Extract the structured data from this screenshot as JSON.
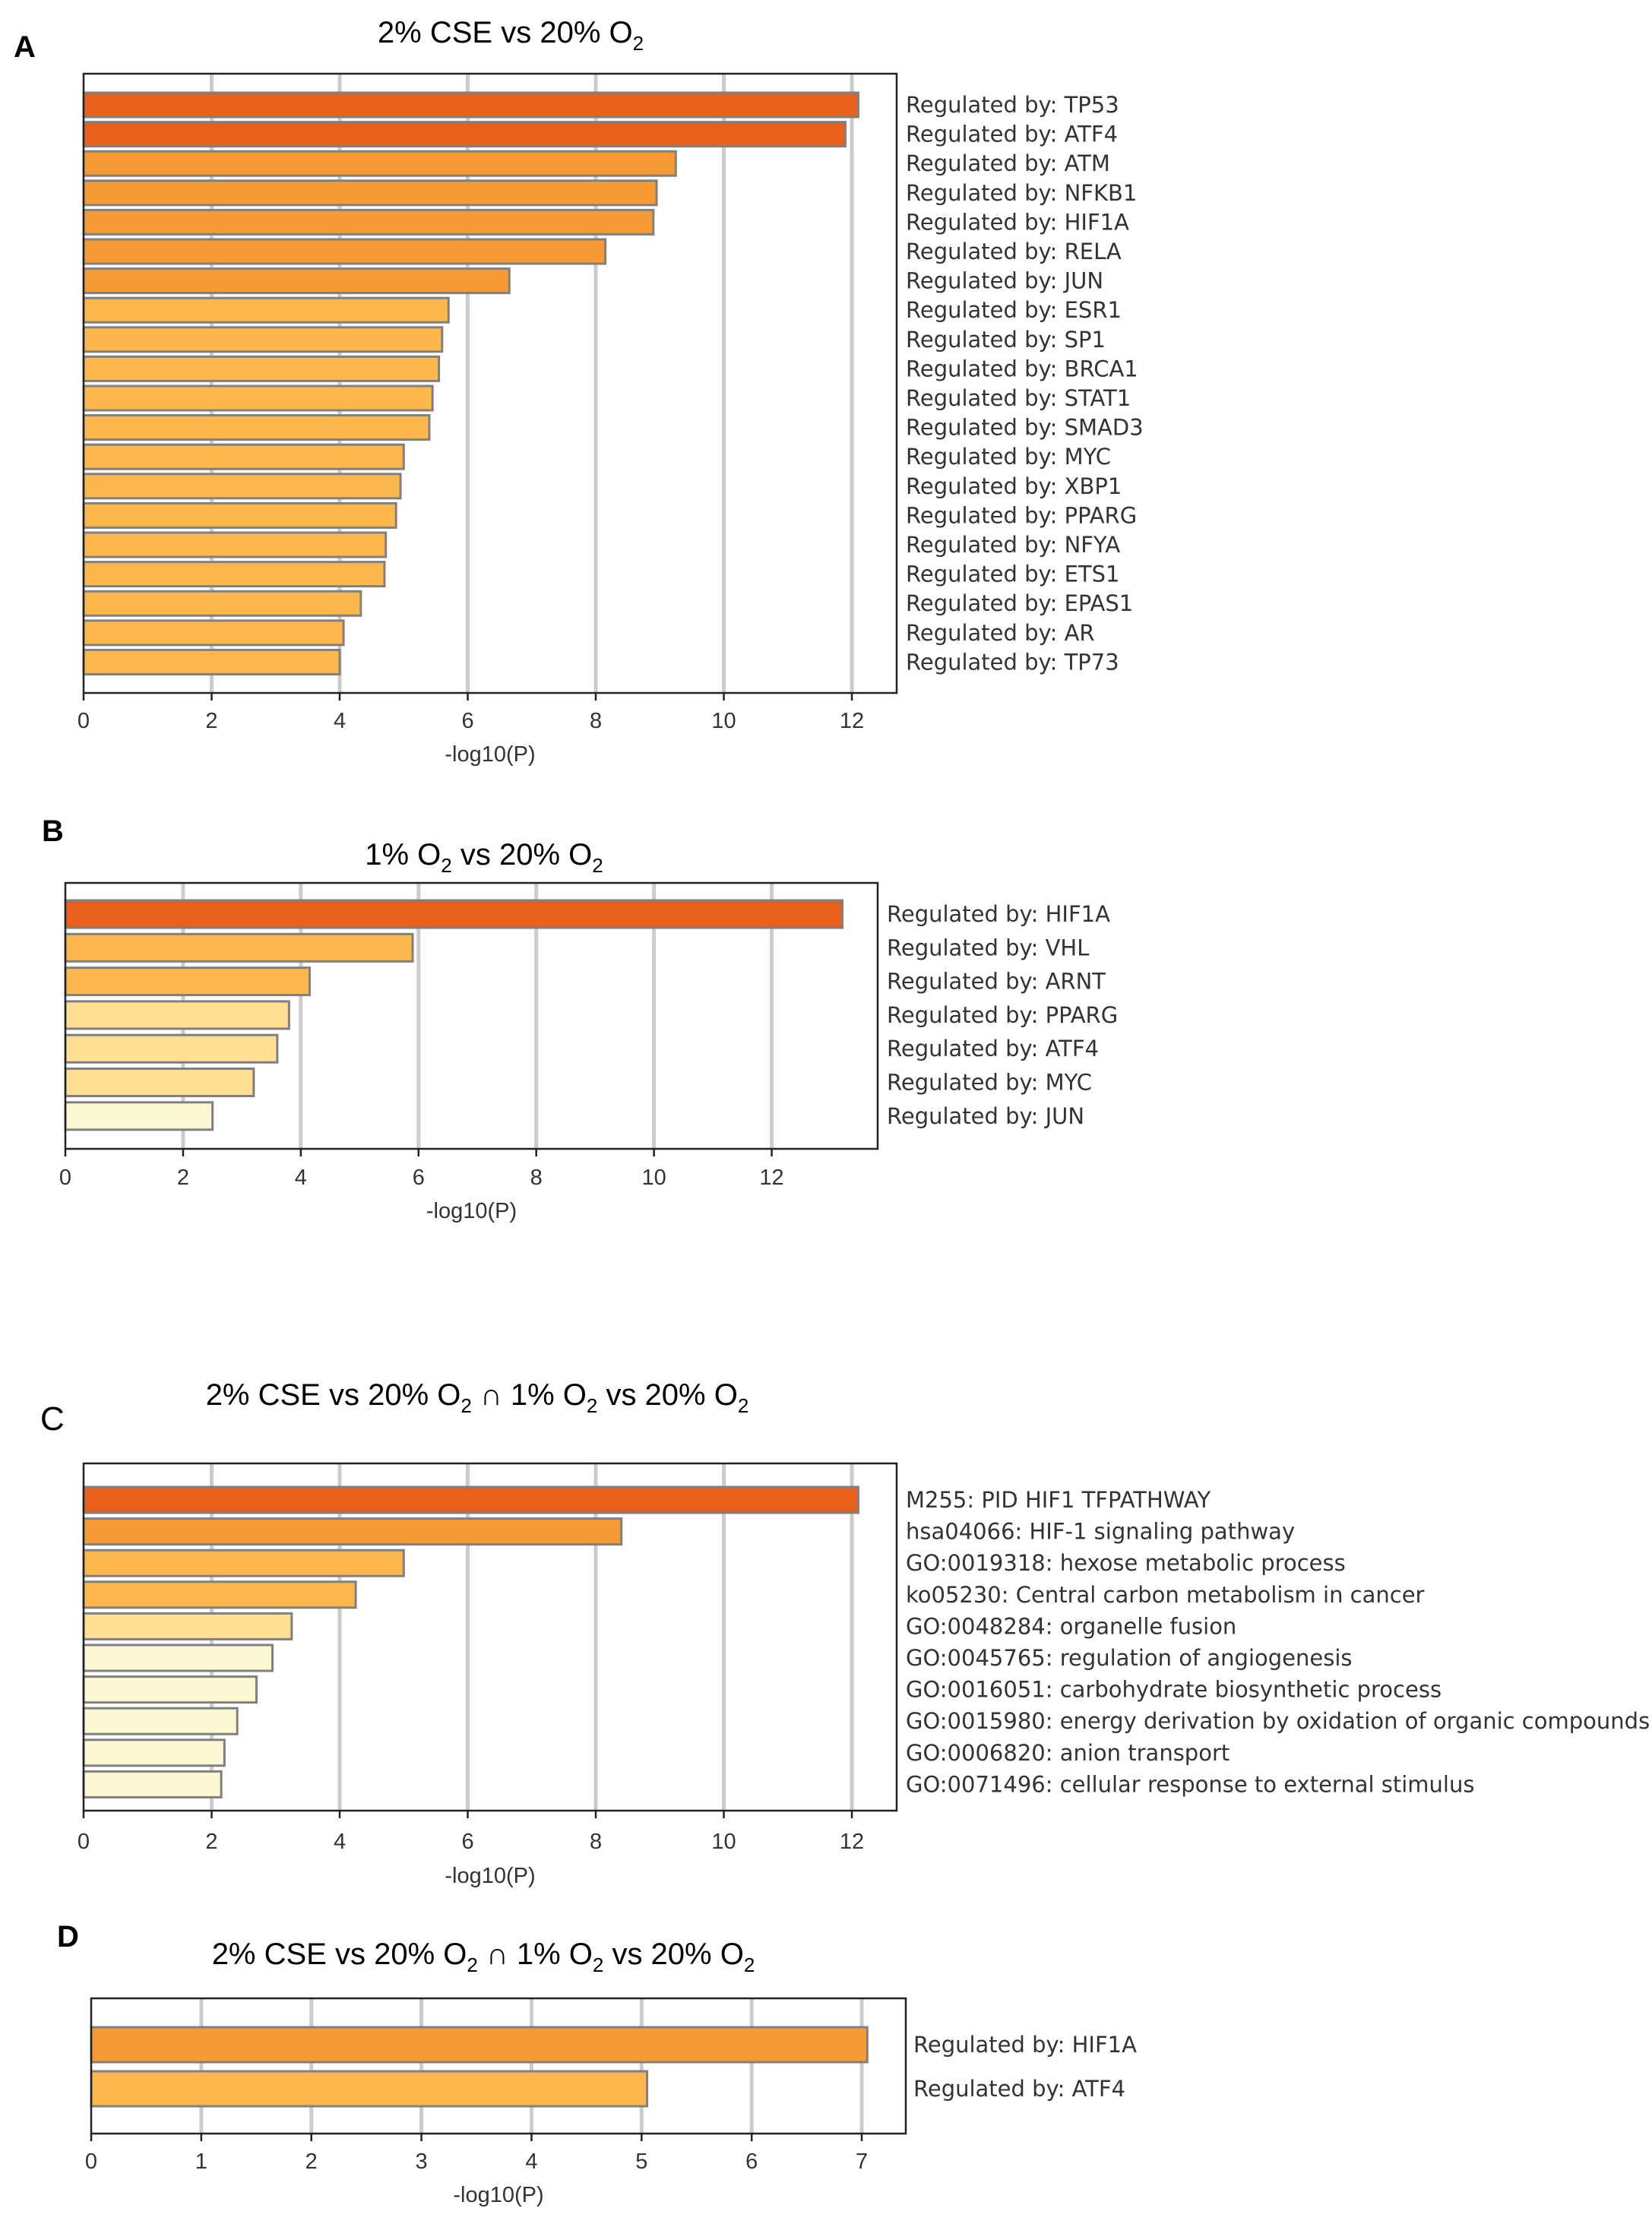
{
  "chart_data": [
    {
      "id": "A",
      "type": "bar",
      "orientation": "horizontal",
      "panel_label": "A",
      "title": "2% CSE vs 20% O2",
      "title_parts": [
        {
          "text": "2% CSE vs 20% O"
        },
        {
          "text": "2",
          "sub": true
        }
      ],
      "xlabel": "-log10(P)",
      "xlim": [
        0,
        12.7
      ],
      "xticks": [
        0,
        2,
        4,
        6,
        8,
        10,
        12
      ],
      "grid": true,
      "categories": [
        "Regulated by: TP53",
        "Regulated by: ATF4",
        "Regulated by: ATM",
        "Regulated by: NFKB1",
        "Regulated by: HIF1A",
        "Regulated by: RELA",
        "Regulated by: JUN",
        "Regulated by: ESR1",
        "Regulated by: SP1",
        "Regulated by: BRCA1",
        "Regulated by: STAT1",
        "Regulated by: SMAD3",
        "Regulated by: MYC",
        "Regulated by: XBP1",
        "Regulated by: PPARG",
        "Regulated by: NFYA",
        "Regulated by: ETS1",
        "Regulated by: EPAS1",
        "Regulated by: AR",
        "Regulated by: TP73"
      ],
      "values": [
        12.1,
        11.9,
        9.25,
        8.95,
        8.9,
        8.15,
        6.65,
        5.7,
        5.6,
        5.55,
        5.45,
        5.4,
        5.0,
        4.95,
        4.88,
        4.72,
        4.7,
        4.33,
        4.06,
        4.0
      ],
      "colors": [
        "#e8601c",
        "#e8601c",
        "#f89a33",
        "#f89a33",
        "#f89a33",
        "#f89a33",
        "#f89a33",
        "#fdb84d",
        "#fdb84d",
        "#fdb84d",
        "#fdb84d",
        "#fdb84d",
        "#fdb84d",
        "#fdb84d",
        "#fdb84d",
        "#fdb84d",
        "#fdb84d",
        "#fdb84d",
        "#fdb84d",
        "#fdb84d"
      ]
    },
    {
      "id": "B",
      "type": "bar",
      "orientation": "horizontal",
      "panel_label": "B",
      "title": "1% O2 vs 20% O2",
      "title_parts": [
        {
          "text": "1% O"
        },
        {
          "text": "2",
          "sub": true
        },
        {
          "text": " vs 20% O"
        },
        {
          "text": "2",
          "sub": true
        }
      ],
      "xlabel": "-log10(P)",
      "xlim": [
        0,
        13.8
      ],
      "xticks": [
        0,
        2,
        4,
        6,
        8,
        10,
        12
      ],
      "grid": true,
      "categories": [
        "Regulated by: HIF1A",
        "Regulated by: VHL",
        "Regulated by: ARNT",
        "Regulated by: PPARG",
        "Regulated by: ATF4",
        "Regulated by: MYC",
        "Regulated by: JUN"
      ],
      "values": [
        13.2,
        5.9,
        4.15,
        3.8,
        3.6,
        3.2,
        2.5
      ],
      "colors": [
        "#e8601c",
        "#fdb84d",
        "#fdb84d",
        "#fedf94",
        "#fedf94",
        "#fedf94",
        "#fef8d2"
      ]
    },
    {
      "id": "C",
      "type": "bar",
      "orientation": "horizontal",
      "panel_label": "C",
      "title": "2% CSE vs 20% O2 ∩ 1% O2 vs 20% O2",
      "title_parts": [
        {
          "text": "2% CSE vs 20% O"
        },
        {
          "text": "2",
          "sub": true
        },
        {
          "text": "  ∩   1% O"
        },
        {
          "text": "2",
          "sub": true
        },
        {
          "text": " vs 20% O"
        },
        {
          "text": "2",
          "sub": true
        }
      ],
      "xlabel": "-log10(P)",
      "xlim": [
        0,
        12.7
      ],
      "xticks": [
        0,
        2,
        4,
        6,
        8,
        10,
        12
      ],
      "grid": true,
      "categories": [
        "M255: PID HIF1 TFPATHWAY",
        "hsa04066: HIF-1 signaling pathway",
        "GO:0019318: hexose metabolic process",
        "ko05230: Central carbon metabolism in cancer",
        "GO:0048284: organelle fusion",
        "GO:0045765: regulation of angiogenesis",
        "GO:0016051: carbohydrate biosynthetic process",
        "GO:0015980: energy derivation by oxidation of organic compounds",
        "GO:0006820: anion transport",
        "GO:0071496: cellular response to external stimulus"
      ],
      "values": [
        12.1,
        8.4,
        5.0,
        4.25,
        3.25,
        2.95,
        2.7,
        2.4,
        2.2,
        2.15
      ],
      "colors": [
        "#e8601c",
        "#f89a33",
        "#fdb84d",
        "#fdb84d",
        "#fedf94",
        "#fef8d2",
        "#fef8d2",
        "#fef8d2",
        "#fef8d2",
        "#fef8d2"
      ]
    },
    {
      "id": "D",
      "type": "bar",
      "orientation": "horizontal",
      "panel_label": "D",
      "title": "2% CSE vs 20% O2 ∩ 1% O2 vs 20% O2",
      "title_parts": [
        {
          "text": "2% CSE vs 20% O"
        },
        {
          "text": "2",
          "sub": true
        },
        {
          "text": "  ∩   1% O"
        },
        {
          "text": "2",
          "sub": true
        },
        {
          "text": " vs 20% O"
        },
        {
          "text": "2",
          "sub": true
        }
      ],
      "xlabel": "-log10(P)",
      "xlim": [
        0,
        7.4
      ],
      "xticks": [
        0,
        1,
        2,
        3,
        4,
        5,
        6,
        7
      ],
      "grid": true,
      "categories": [
        "Regulated by: HIF1A",
        "Regulated by: ATF4"
      ],
      "values": [
        7.05,
        5.05
      ],
      "colors": [
        "#f89a33",
        "#fdb84d"
      ]
    }
  ]
}
